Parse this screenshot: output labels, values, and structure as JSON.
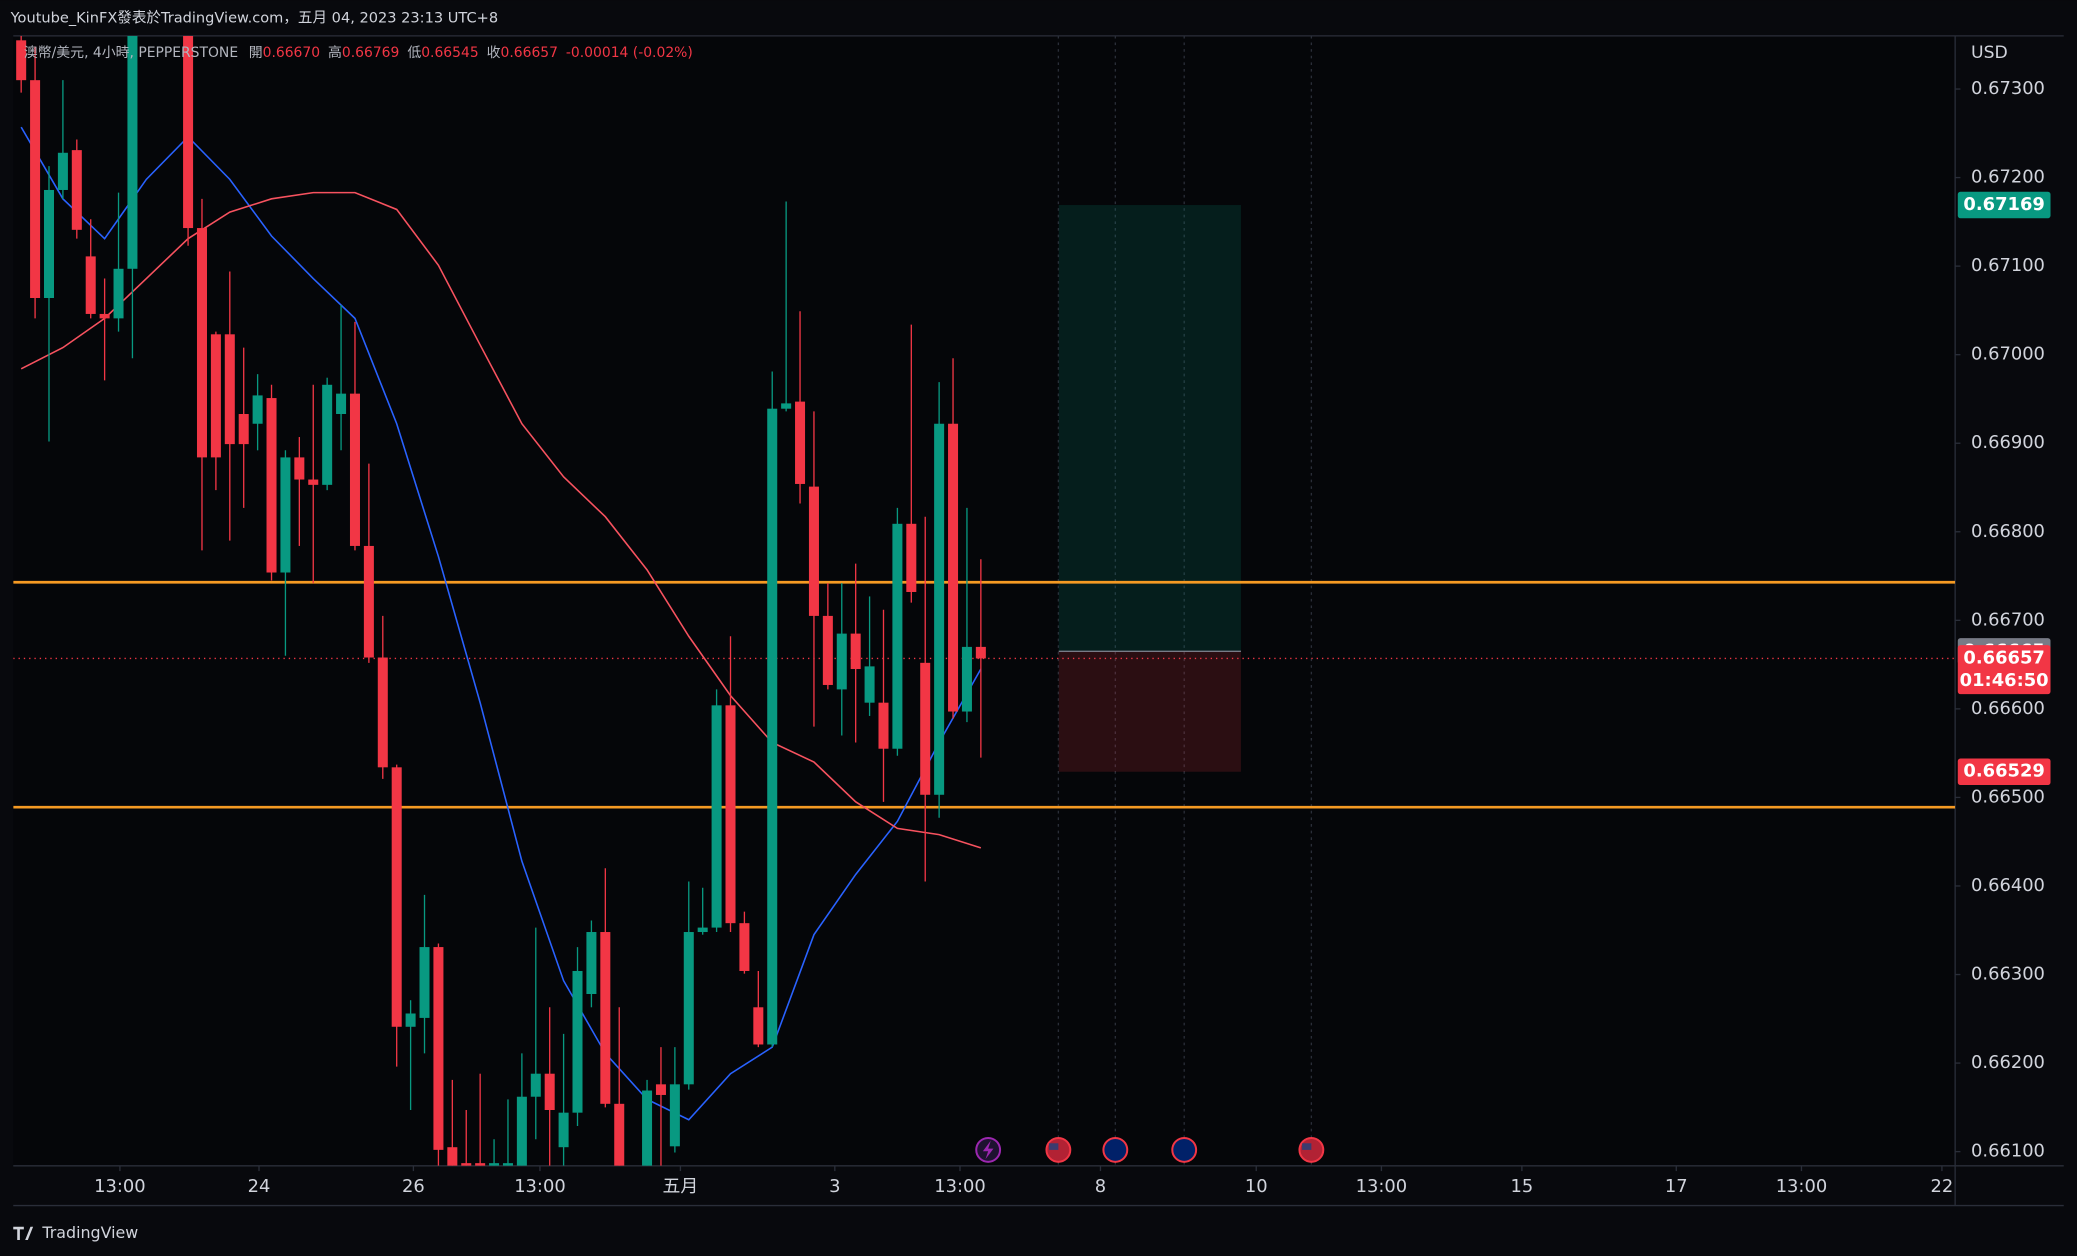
{
  "header": "Youtube_KinFX發表於TradingView.com，五月 04, 2023 23:13 UTC+8",
  "footer": "TradingView",
  "chart_data": {
    "type": "candlestick",
    "legend": {
      "symbol": "澳幣/美元, 4小時, PEPPERSTONE",
      "open_label": "開",
      "open": "0.66670",
      "high_label": "高",
      "high": "0.66769",
      "low_label": "低",
      "low": "0.66545",
      "close_label": "收",
      "close": "0.66657",
      "change": "-0.00014 (-0.02%)"
    },
    "currency": "USD",
    "x": [
      0,
      1,
      2,
      3,
      4,
      5,
      6,
      7,
      8,
      12,
      13,
      14,
      15,
      16,
      17,
      18,
      19,
      20,
      21,
      22,
      23,
      24,
      25,
      26,
      27,
      28,
      29,
      30,
      31,
      32,
      33,
      34,
      35,
      36,
      37,
      38,
      39,
      40,
      41,
      42,
      43,
      45,
      46,
      47,
      48,
      49,
      50,
      51,
      52,
      53,
      54,
      55,
      56,
      57,
      58,
      59,
      60,
      61,
      62,
      63,
      64,
      65,
      66,
      67,
      68,
      69
    ],
    "open": [
      0.67355,
      0.6731,
      0.67064,
      0.67186,
      0.67231,
      0.67111,
      0.67046,
      0.67041,
      0.67097,
      0.6736,
      0.67143,
      0.67023,
      0.67023,
      0.66933,
      0.66922,
      0.66951,
      0.66754,
      0.66884,
      0.66859,
      0.66853,
      0.66933,
      0.66956,
      0.66784,
      0.66658,
      0.66534,
      0.66241,
      0.66251,
      0.66331,
      0.66105,
      0.66087,
      0.66087,
      0.66084,
      0.66084,
      0.66084,
      0.66162,
      0.66188,
      0.66105,
      0.66144,
      0.66278,
      0.66348,
      0.66154,
      0.66084,
      0.66176,
      0.66106,
      0.66176,
      0.66348,
      0.66353,
      0.66604,
      0.66358,
      0.66263,
      0.66221,
      0.66939,
      0.66947,
      0.66851,
      0.66705,
      0.66622,
      0.66685,
      0.66607,
      0.66607,
      0.66555,
      0.66809,
      0.66652,
      0.66503,
      0.66922,
      0.66597,
      0.6667
    ],
    "high": [
      0.6736,
      0.67348,
      0.67213,
      0.6731,
      0.67243,
      0.67153,
      0.67086,
      0.67183,
      0.6736,
      0.6736,
      0.67176,
      0.67026,
      0.67094,
      0.67008,
      0.66978,
      0.66966,
      0.66892,
      0.66907,
      0.66966,
      0.66974,
      0.67056,
      0.67037,
      0.66877,
      0.66705,
      0.66537,
      0.66271,
      0.6639,
      0.66335,
      0.66181,
      0.66147,
      0.66188,
      0.66114,
      0.66159,
      0.66211,
      0.66353,
      0.66263,
      0.66233,
      0.66331,
      0.66361,
      0.6642,
      0.66263,
      0.66181,
      0.66218,
      0.66218,
      0.66405,
      0.66398,
      0.66622,
      0.66682,
      0.66371,
      0.66304,
      0.66981,
      0.67173,
      0.67049,
      0.66936,
      0.66742,
      0.66742,
      0.66764,
      0.66727,
      0.66712,
      0.66827,
      0.67034,
      0.66817,
      0.66969,
      0.66996,
      0.66827,
      0.66769
    ],
    "low": [
      0.67296,
      0.67041,
      0.66902,
      0.67176,
      0.67131,
      0.67041,
      0.66971,
      0.67026,
      0.66996,
      0.67123,
      0.66779,
      0.66847,
      0.6679,
      0.66827,
      0.66892,
      0.66745,
      0.6666,
      0.66784,
      0.66742,
      0.66847,
      0.66892,
      0.66779,
      0.66652,
      0.66521,
      0.66196,
      0.66147,
      0.66211,
      0.66084,
      0.66084,
      0.66084,
      0.66084,
      0.66084,
      0.66084,
      0.66084,
      0.66114,
      0.66084,
      0.66084,
      0.66129,
      0.66263,
      0.6615,
      0.66084,
      0.66084,
      0.66084,
      0.66099,
      0.6617,
      0.66345,
      0.66348,
      0.66348,
      0.66301,
      0.66218,
      0.66218,
      0.66936,
      0.66832,
      0.6658,
      0.66622,
      0.6657,
      0.66562,
      0.66592,
      0.66495,
      0.66547,
      0.6672,
      0.66405,
      0.66477,
      0.66589,
      0.66585,
      0.66545
    ],
    "close": [
      0.6731,
      0.67064,
      0.67186,
      0.67228,
      0.67141,
      0.67046,
      0.67041,
      0.67097,
      0.6736,
      0.67143,
      0.66884,
      0.66884,
      0.66899,
      0.66899,
      0.66954,
      0.66754,
      0.66884,
      0.66859,
      0.66853,
      0.66966,
      0.66956,
      0.66784,
      0.66658,
      0.66534,
      0.66241,
      0.66256,
      0.66331,
      0.66102,
      0.66084,
      0.66084,
      0.66084,
      0.66087,
      0.66087,
      0.66162,
      0.66188,
      0.66147,
      0.66144,
      0.66304,
      0.66348,
      0.66154,
      0.66084,
      0.66169,
      0.66164,
      0.66176,
      0.66348,
      0.66353,
      0.66604,
      0.66358,
      0.66304,
      0.66221,
      0.66939,
      0.66945,
      0.66854,
      0.66705,
      0.66627,
      0.66685,
      0.66645,
      0.66648,
      0.66555,
      0.66809,
      0.66732,
      0.66503,
      0.66922,
      0.66597,
      0.6667,
      0.66657
    ],
    "up_color": "#089981",
    "down_color": "#f23645",
    "moving_averages": [
      {
        "color": "#2962ff",
        "x": [
          0,
          3,
          6,
          9,
          12,
          15,
          18,
          21,
          24,
          27,
          30,
          33,
          36,
          39,
          42,
          45,
          48,
          51,
          54,
          57,
          60,
          63,
          66,
          69
        ],
        "values": [
          0.67257,
          0.67176,
          0.67131,
          0.67198,
          0.67246,
          0.67198,
          0.67134,
          0.67086,
          0.67041,
          0.66922,
          0.66772,
          0.66607,
          0.66428,
          0.66293,
          0.66211,
          0.66159,
          0.66136,
          0.66188,
          0.66218,
          0.66345,
          0.66413,
          0.66473,
          0.66562,
          0.66645
        ]
      },
      {
        "color": "#f7525f",
        "x": [
          0,
          3,
          6,
          9,
          12,
          15,
          18,
          21,
          24,
          27,
          30,
          33,
          36,
          39,
          42,
          45,
          48,
          51,
          54,
          57,
          60,
          63,
          66,
          69
        ],
        "values": [
          0.66984,
          0.67008,
          0.67041,
          0.67086,
          0.67131,
          0.67161,
          0.67176,
          0.67183,
          0.67183,
          0.67164,
          0.67101,
          0.67011,
          0.66922,
          0.66862,
          0.66817,
          0.66757,
          0.66682,
          0.66615,
          0.66562,
          0.6654,
          0.66495,
          0.66465,
          0.66458,
          0.66443
        ]
      }
    ],
    "levels": [
      {
        "value": 0.66743,
        "color": "#f59a23"
      },
      {
        "value": 0.66489,
        "color": "#f59a23"
      }
    ],
    "position": {
      "target": 0.67169,
      "entry": 0.66665,
      "stop": 0.66529,
      "x_start": 74.6,
      "x_end": 87.7,
      "target_color": "#089981",
      "entry_color": "#787b86",
      "stop_color": "#f23645"
    },
    "last_price": {
      "value": 0.66657,
      "countdown": "01:46:50",
      "color": "#f23645"
    },
    "xlim": [
      -0.57,
      139.05
    ],
    "xticks": [
      {
        "value": 7.1,
        "label": "13:00"
      },
      {
        "value": 17.1,
        "label": "24"
      },
      {
        "value": 28.2,
        "label": "26"
      },
      {
        "value": 37.3,
        "label": "13:00"
      },
      {
        "value": 47.4,
        "label": "五月"
      },
      {
        "value": 58.5,
        "label": "3"
      },
      {
        "value": 67.5,
        "label": "13:00"
      },
      {
        "value": 77.6,
        "label": "8"
      },
      {
        "value": 88.8,
        "label": "10"
      },
      {
        "value": 97.8,
        "label": "13:00"
      },
      {
        "value": 107.9,
        "label": "15"
      },
      {
        "value": 119,
        "label": "17"
      },
      {
        "value": 128,
        "label": "13:00"
      },
      {
        "value": 138.1,
        "label": "22"
      }
    ],
    "ylim": [
      0.66084,
      0.6736
    ],
    "yticks": [
      {
        "value": 0.673,
        "label": "0.67300"
      },
      {
        "value": 0.672,
        "label": "0.67200"
      },
      {
        "value": 0.671,
        "label": "0.67100"
      },
      {
        "value": 0.67,
        "label": "0.67000"
      },
      {
        "value": 0.669,
        "label": "0.66900"
      },
      {
        "value": 0.668,
        "label": "0.66800"
      },
      {
        "value": 0.667,
        "label": "0.66700"
      },
      {
        "value": 0.666,
        "label": "0.66600"
      },
      {
        "value": 0.665,
        "label": "0.66500"
      },
      {
        "value": 0.664,
        "label": "0.66400"
      },
      {
        "value": 0.663,
        "label": "0.66300"
      },
      {
        "value": 0.662,
        "label": "0.66200"
      },
      {
        "value": 0.661,
        "label": "0.66100"
      }
    ],
    "grid": false
  }
}
